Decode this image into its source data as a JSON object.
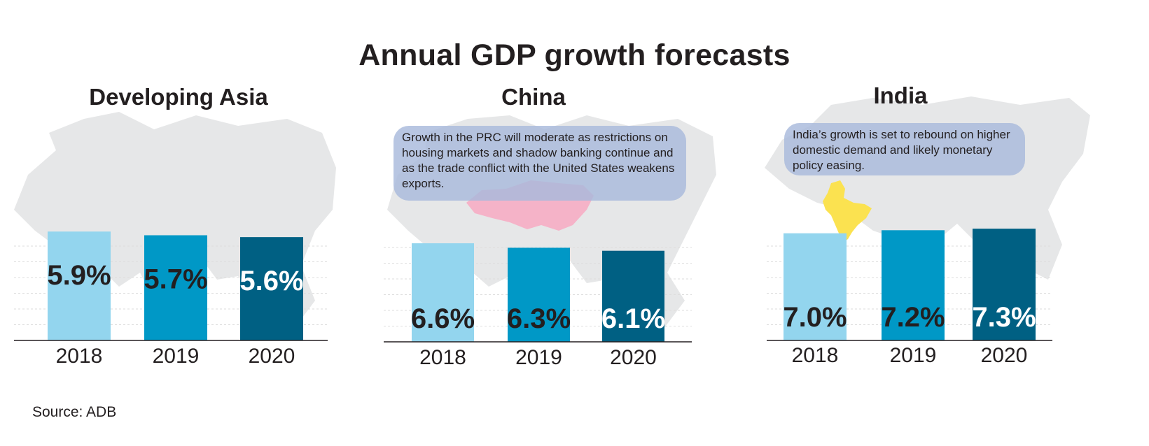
{
  "title": "Annual GDP growth forecasts",
  "source": "Source: ADB",
  "colors": {
    "2018": "#93d5ee",
    "2019": "#0098c6",
    "2020": "#006083"
  },
  "chart_data": [
    {
      "type": "bar",
      "title": "Developing Asia",
      "categories": [
        "2018",
        "2019",
        "2020"
      ],
      "values": [
        5.9,
        5.7,
        5.6
      ],
      "labels": [
        "5.9%",
        "5.7%",
        "5.6%"
      ],
      "label_position": "top",
      "callout": ""
    },
    {
      "type": "bar",
      "title": "China",
      "categories": [
        "2018",
        "2019",
        "2020"
      ],
      "values": [
        6.6,
        6.3,
        6.1
      ],
      "labels": [
        "6.6%",
        "6.3%",
        "6.1%"
      ],
      "label_position": "bottom",
      "callout": "Growth in the PRC will moderate as restrictions on housing markets and shadow banking continue and as the trade conflict with the United States weakens exports."
    },
    {
      "type": "bar",
      "title": "India",
      "categories": [
        "2018",
        "2019",
        "2020"
      ],
      "values": [
        7.0,
        7.2,
        7.3
      ],
      "labels": [
        "7.0%",
        "7.2%",
        "7.3%"
      ],
      "label_position": "bottom",
      "callout": "India’s growth is set to rebound on higher domestic demand and likely monetary policy easing."
    }
  ]
}
